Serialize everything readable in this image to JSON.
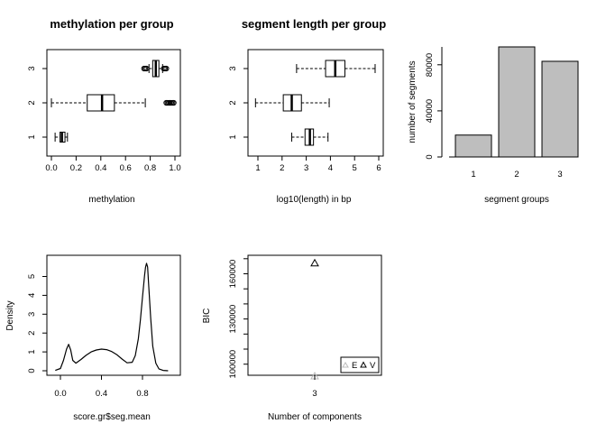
{
  "panels": {
    "meth_box": {
      "title": "methylation per group",
      "xlabel": "methylation",
      "xticks": [
        "0.0",
        "0.2",
        "0.4",
        "0.6",
        "0.8",
        "1.0"
      ],
      "yticks": [
        "1",
        "2",
        "3"
      ]
    },
    "len_box": {
      "title": "segment length per group",
      "xlabel": "log10(length) in bp",
      "xticks": [
        "1",
        "2",
        "3",
        "4",
        "5",
        "6"
      ],
      "yticks": [
        "1",
        "2",
        "3"
      ]
    },
    "bar": {
      "ylabel": "number of segments",
      "xlabel": "segment groups",
      "xticks": [
        "1",
        "2",
        "3"
      ],
      "yticks": [
        "0",
        "40000",
        "80000"
      ]
    },
    "density": {
      "ylabel": "Density",
      "xlabel": "score.gr$seg.mean",
      "xticks": [
        "0.0",
        "0.4",
        "0.8"
      ],
      "yticks": [
        "0",
        "1",
        "2",
        "3",
        "4",
        "5"
      ]
    },
    "bic": {
      "ylabel": "BIC",
      "xlabel": "Number of components",
      "xticks": [
        "3"
      ],
      "yticks": [
        "100000",
        "130000",
        "160000"
      ],
      "legend": [
        "E",
        "V"
      ]
    }
  },
  "chart_data": [
    {
      "type": "boxplot",
      "title": "methylation per group",
      "xlabel": "methylation",
      "xlim": [
        -0.04,
        1.04
      ],
      "groups": [
        {
          "name": "1",
          "whisker_low": 0.03,
          "q1": 0.07,
          "median": 0.085,
          "q3": 0.11,
          "whisker_high": 0.13,
          "outliers": []
        },
        {
          "name": "2",
          "whisker_low": 0.0,
          "q1": 0.29,
          "median": 0.41,
          "q3": 0.51,
          "whisker_high": 0.76,
          "outliers": [
            0.93,
            0.94,
            0.95,
            0.96,
            0.97,
            0.98,
            0.99
          ]
        },
        {
          "name": "3",
          "whisker_low": 0.79,
          "q1": 0.82,
          "median": 0.845,
          "q3": 0.87,
          "whisker_high": 0.9,
          "outliers": [
            0.75,
            0.76,
            0.77,
            0.91,
            0.92,
            0.93
          ]
        }
      ]
    },
    {
      "type": "boxplot",
      "title": "segment length per group",
      "xlabel": "log10(length) in bp",
      "xlim": [
        0.8,
        6.1
      ],
      "groups": [
        {
          "name": "1",
          "whisker_low": 2.4,
          "q1": 2.95,
          "median": 3.15,
          "q3": 3.3,
          "whisker_high": 3.9,
          "outliers": []
        },
        {
          "name": "2",
          "whisker_low": 0.9,
          "q1": 2.05,
          "median": 2.4,
          "q3": 2.8,
          "whisker_high": 3.95,
          "outliers": []
        },
        {
          "name": "3",
          "whisker_low": 2.6,
          "q1": 3.8,
          "median": 4.2,
          "q3": 4.6,
          "whisker_high": 5.85,
          "outliers": []
        }
      ]
    },
    {
      "type": "bar",
      "categories": [
        "1",
        "2",
        "3"
      ],
      "values": [
        19000,
        95500,
        83000
      ],
      "xlabel": "segment groups",
      "ylabel": "number of segments",
      "ylim": [
        0,
        95500
      ]
    },
    {
      "type": "line",
      "subtype": "density",
      "xlabel": "score.gr$seg.mean",
      "ylabel": "Density",
      "xlim": [
        -0.13,
        1.13
      ],
      "ylim": [
        0,
        5.8
      ],
      "x": [
        -0.05,
        0.0,
        0.03,
        0.06,
        0.08,
        0.1,
        0.12,
        0.15,
        0.2,
        0.25,
        0.3,
        0.35,
        0.4,
        0.45,
        0.5,
        0.55,
        0.6,
        0.65,
        0.7,
        0.73,
        0.76,
        0.78,
        0.8,
        0.82,
        0.83,
        0.84,
        0.85,
        0.86,
        0.88,
        0.9,
        0.93,
        0.96,
        1.0,
        1.05
      ],
      "y": [
        0.02,
        0.12,
        0.55,
        1.15,
        1.4,
        1.1,
        0.55,
        0.4,
        0.6,
        0.82,
        1.0,
        1.1,
        1.15,
        1.12,
        1.02,
        0.85,
        0.62,
        0.42,
        0.45,
        0.8,
        1.7,
        2.7,
        3.9,
        5.05,
        5.5,
        5.7,
        5.5,
        4.6,
        2.8,
        1.3,
        0.4,
        0.1,
        0.02,
        0.0
      ]
    },
    {
      "type": "scatter",
      "xlabel": "Number of components",
      "ylabel": "BIC",
      "xlim": [
        2.7,
        3.3
      ],
      "ylim": [
        90000,
        172000
      ],
      "series": [
        {
          "name": "E",
          "color": "#bbbbbb",
          "marker": "triangle",
          "x": [
            3
          ],
          "y": [
            92000
          ]
        },
        {
          "name": "V",
          "color": "#000000",
          "marker": "triangle",
          "x": [
            3
          ],
          "y": [
            167000
          ]
        }
      ]
    }
  ]
}
